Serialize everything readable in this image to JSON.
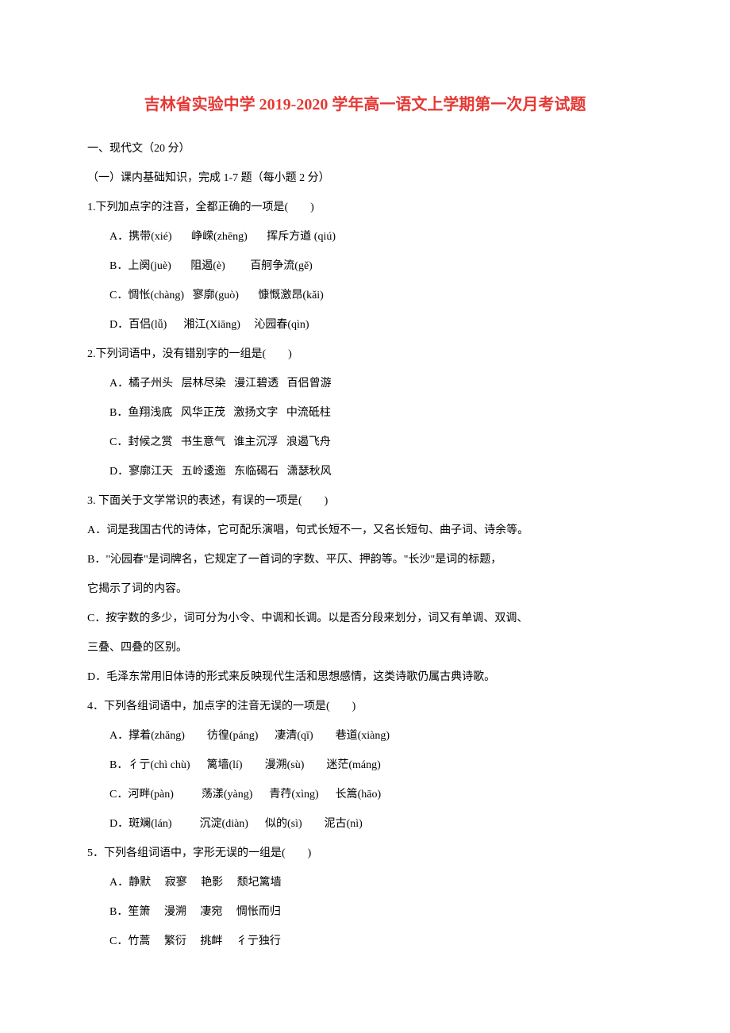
{
  "title": "吉林省实验中学 2019-2020 学年高一语文上学期第一次月考试题",
  "section1": " 一、现代文（20 分）",
  "section1_1": "（一）课内基础知识，完成 1-7 题（每小题 2 分）",
  "q1": "1.下列加点字的注音，全都正确的一项是(　　)",
  "q1_a": "A．携带(xié)　   峥嵘(zhēng)　   挥斥方遒 (qiú)",
  "q1_b": "B．上阕(juè)　   阻遏(è)         百舸争流(gě)",
  "q1_c": "C．惆怅(chàng)   寥廓(guò)       慷慨激昂(kǎi)",
  "q1_d": "D．百侣(lǚ)      湘江(Xiāng)     沁园春(qìn)",
  "q2": "2.下列词语中，没有错别字的一组是(　　)",
  "q2_a": "A．橘子州头   层林尽染   漫江碧透   百侣曾游",
  "q2_b": "B．鱼翔浅底   风华正茂   激扬文字   中流砥柱",
  "q2_c": "C．封候之赏   书生意气   谁主沉浮   浪遏飞舟",
  "q2_d": "D．寥廓江天   五岭逶迤   东临碣石   潇瑟秋风",
  "q3": "3. 下面关于文学常识的表述，有误的一项是(　　)",
  "q3_a": "    A．词是我国古代的诗体，它可配乐演唱，句式长短不一，又名长短句、曲子词、诗余等。",
  "q3_b1": "    B．\"沁园春\"是词牌名，它规定了一首词的字数、平仄、押韵等。\"长沙\"是词的标题，",
  "q3_b2": "它揭示了词的内容。",
  "q3_c1": "    C．按字数的多少，词可分为小令、中调和长调。以是否分段来划分，词又有单调、双调、",
  "q3_c2": "三叠、四叠的区别。",
  "q3_d": "    D．毛泽东常用旧体诗的形式来反映现代生活和思想感情，这类诗歌仍属古典诗歌。",
  "q4": "4．下列各组词语中，加点字的注音无误的一项是(　　)",
  "q4_a": "A．撑着(zhǎng)        彷徨(páng)      凄清(qī)        巷道(xiàng)",
  "q4_b": "B．彳亍(chì chù)      篱墙(lí)        漫溯(sù)        迷茫(máng)",
  "q4_c": "C．河畔(pàn)          荡漾(yàng)      青荇(xìng)      长篙(hāo)",
  "q4_d": "D．斑斓(lán)          沉淀(diàn)      似的(sì)        泥古(nì)",
  "q5": "5．下列各组词语中，字形无误的一组是(　　)",
  "q5_a": "A．静默     寂寥     艳影     颓圮篱墙",
  "q5_b": "B．笙箫     漫溯     凄宛     惆怅而归",
  "q5_c": "C．竹蒿     繁衍     挑衅     彳亍独行"
}
